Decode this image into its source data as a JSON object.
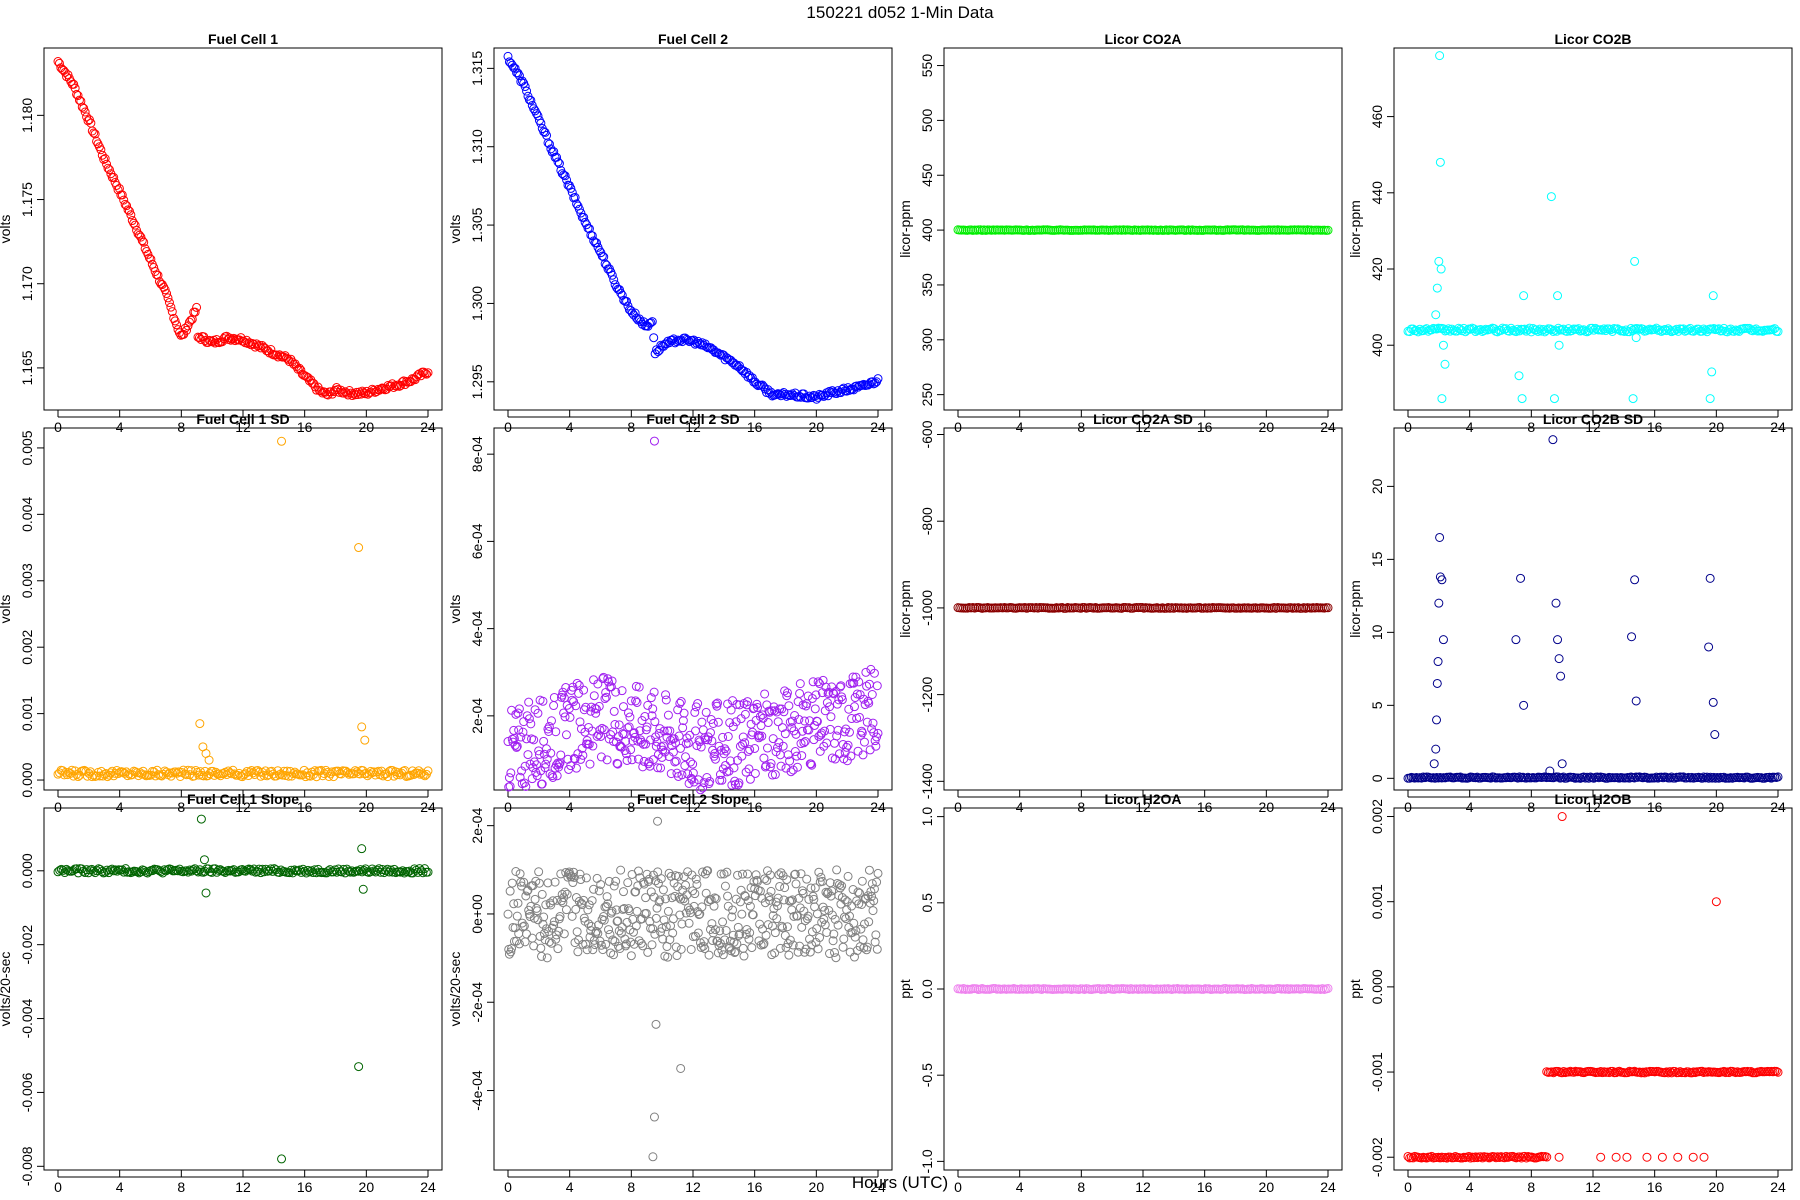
{
  "figure": {
    "title": "150221    d052    1-Min Data",
    "xlabel": "Hours (UTC)"
  },
  "chart_data": [
    {
      "id": "fc1",
      "type": "scatter",
      "title": "Fuel Cell 1",
      "ylabel": "volts",
      "color": "#ff0000",
      "xlim": [
        0,
        24
      ],
      "ylim": [
        1.1625,
        1.184
      ],
      "xticks": [
        "0",
        "4",
        "8",
        "12",
        "16",
        "20",
        "24"
      ],
      "yticks": [
        1.165,
        1.17,
        1.175,
        1.18
      ],
      "yticklabels": [
        "1.165",
        "1.170",
        "1.175",
        "1.180"
      ],
      "series": [
        {
          "x": [
            0,
            1,
            2,
            3,
            4,
            5,
            6,
            7,
            8,
            9,
            9.05,
            9.3,
            10,
            11,
            12,
            13,
            14,
            15,
            16,
            17,
            17.5,
            18,
            19,
            20,
            21,
            22,
            23,
            24
          ],
          "y": [
            1.1832,
            1.1818,
            1.1797,
            1.1774,
            1.1755,
            1.1735,
            1.1714,
            1.1694,
            1.1668,
            1.1685,
            1.1668,
            1.1668,
            1.1665,
            1.1668,
            1.1667,
            1.1663,
            1.1659,
            1.1655,
            1.1645,
            1.1636,
            1.1634,
            1.1637,
            1.1635,
            1.1635,
            1.1638,
            1.164,
            1.1643,
            1.1648
          ]
        }
      ]
    },
    {
      "id": "fc2",
      "type": "scatter",
      "title": "Fuel Cell 2",
      "ylabel": "volts",
      "color": "#0000ff",
      "xlim": [
        0,
        24
      ],
      "ylim": [
        1.2932,
        1.3163
      ],
      "xticks": [
        "0",
        "4",
        "8",
        "12",
        "16",
        "20",
        "24"
      ],
      "yticks": [
        1.295,
        1.3,
        1.305,
        1.31,
        1.315
      ],
      "yticklabels": [
        "1.295",
        "1.300",
        "1.305",
        "1.310",
        "1.315"
      ],
      "series": [
        {
          "x": [
            0,
            1,
            2,
            3,
            4,
            5,
            6,
            7,
            8,
            9,
            9.4,
            9.5,
            10,
            11,
            12,
            13,
            14,
            15,
            16,
            17,
            17.5,
            18,
            19,
            20,
            21,
            22,
            23,
            24
          ],
          "y": [
            1.3157,
            1.314,
            1.3117,
            1.3095,
            1.3074,
            1.3052,
            1.3033,
            1.3012,
            1.2995,
            1.2985,
            1.299,
            1.2968,
            1.2973,
            1.2977,
            1.2976,
            1.2972,
            1.2966,
            1.296,
            1.295,
            1.2943,
            1.2941,
            1.2942,
            1.2941,
            1.294,
            1.2943,
            1.2945,
            1.2947,
            1.2951
          ]
        }
      ]
    },
    {
      "id": "co2a",
      "type": "scatter",
      "title": "Licor CO2A",
      "ylabel": "licor-ppm",
      "color": "#00ee00",
      "xlim": [
        0,
        24
      ],
      "ylim": [
        236,
        566
      ],
      "xticks": [
        "0",
        "4",
        "8",
        "12",
        "16",
        "20",
        "24"
      ],
      "yticks": [
        250,
        300,
        350,
        400,
        450,
        500,
        550
      ],
      "yticklabels": [
        "250",
        "300",
        "350",
        "400",
        "450",
        "500",
        "550"
      ],
      "series": [
        {
          "x": [
            0,
            24
          ],
          "y": [
            400,
            400
          ]
        }
      ]
    },
    {
      "id": "co2b",
      "type": "scatter",
      "title": "Licor CO2B",
      "ylabel": "licor-ppm",
      "color": "#00ffff",
      "xlim": [
        0,
        24
      ],
      "ylim": [
        383,
        478
      ],
      "xticks": [
        "0",
        "4",
        "8",
        "12",
        "16",
        "20",
        "24"
      ],
      "yticks": [
        400,
        420,
        440,
        460
      ],
      "yticklabels": [
        "400",
        "420",
        "440",
        "460"
      ],
      "series": [
        {
          "x": [
            0,
            24
          ],
          "y": [
            404,
            404
          ]
        }
      ],
      "outliers": {
        "x": [
          1.8,
          1.9,
          2,
          2.05,
          2.1,
          2.15,
          2.2,
          2.3,
          2.4,
          7.2,
          7.4,
          7.5,
          9.3,
          9.5,
          9.7,
          9.8,
          14.6,
          14.7,
          14.8,
          19.6,
          19.7,
          19.8
        ],
        "y": [
          408,
          415,
          422,
          476,
          448,
          420,
          386,
          400,
          395,
          392,
          386,
          413,
          439,
          386,
          413,
          400,
          386,
          422,
          402,
          386,
          393,
          413
        ]
      }
    },
    {
      "id": "fc1sd",
      "type": "scatter",
      "title": "Fuel Cell 1 SD",
      "ylabel": "volts",
      "color": "#ffa500",
      "xlim": [
        0,
        24
      ],
      "ylim": [
        -0.00015,
        0.0053
      ],
      "xticks": [
        "0",
        "4",
        "8",
        "12",
        "16",
        "20",
        "24"
      ],
      "yticks": [
        0,
        0.001,
        0.002,
        0.003,
        0.004,
        0.005
      ],
      "yticklabels": [
        "0.000",
        "0.001",
        "0.002",
        "0.003",
        "0.004",
        "0.005"
      ],
      "series": [
        {
          "x": [
            0,
            24
          ],
          "y": [
            0.0001,
            0.0001
          ]
        }
      ],
      "outliers": {
        "x": [
          9.2,
          9.4,
          9.6,
          9.8,
          14.5,
          19.5,
          19.7,
          19.9
        ],
        "y": [
          0.00085,
          0.0005,
          0.0004,
          0.0003,
          0.0051,
          0.0035,
          0.0008,
          0.0006
        ]
      }
    },
    {
      "id": "fc2sd",
      "type": "scatter",
      "title": "Fuel Cell 2 SD",
      "ylabel": "volts",
      "color": "#a020f0",
      "xlim": [
        0,
        24
      ],
      "ylim": [
        3e-05,
        0.00086
      ],
      "xticks": [
        "0",
        "4",
        "8",
        "12",
        "16",
        "20",
        "24"
      ],
      "yticks": [
        0.0002,
        0.0004,
        0.0006,
        0.0008
      ],
      "yticklabels": [
        "2e-04",
        "4e-04",
        "6e-04",
        "8e-04"
      ],
      "series": [
        {
          "x": [
            0,
            2,
            4,
            6,
            8,
            10,
            12,
            14,
            16,
            18,
            20,
            22,
            24
          ],
          "y": [
            0.00012,
            0.00014,
            0.00017,
            0.00019,
            0.00018,
            0.00016,
            0.00013,
            0.00013,
            0.00015,
            0.00017,
            0.00018,
            0.00019,
            0.00022
          ]
        }
      ],
      "outliers": {
        "x": [
          9.5
        ],
        "y": [
          0.00083
        ]
      }
    },
    {
      "id": "co2asd",
      "type": "scatter",
      "title": "Licor CO2A SD",
      "ylabel": "licor-ppm",
      "color": "#8b0000",
      "xlim": [
        0,
        24
      ],
      "ylim": [
        -1420,
        -585
      ],
      "xticks": [
        "0",
        "4",
        "8",
        "12",
        "16",
        "20",
        "24"
      ],
      "yticks": [
        -1400,
        -1200,
        -1000,
        -800,
        -600
      ],
      "yticklabels": [
        "-1400",
        "-1200",
        "-1000",
        "-800",
        "-600"
      ],
      "series": [
        {
          "x": [
            0,
            24
          ],
          "y": [
            -1000,
            -1000
          ]
        }
      ]
    },
    {
      "id": "co2bsd",
      "type": "scatter",
      "title": "Licor CO2B SD",
      "ylabel": "licor-ppm",
      "color": "#00008b",
      "xlim": [
        0,
        24
      ],
      "ylim": [
        -0.8,
        24
      ],
      "xticks": [
        "0",
        "4",
        "8",
        "12",
        "16",
        "20",
        "24"
      ],
      "yticks": [
        0,
        5,
        10,
        15,
        20
      ],
      "yticklabels": [
        "0",
        "5",
        "10",
        "15",
        "20"
      ],
      "series": [
        {
          "x": [
            0,
            24
          ],
          "y": [
            0.05,
            0.05
          ]
        }
      ],
      "outliers": {
        "x": [
          1.7,
          1.8,
          1.85,
          1.9,
          1.95,
          2,
          2.05,
          2.1,
          2.2,
          2.3,
          7,
          7.3,
          7.5,
          9.2,
          9.4,
          9.6,
          9.7,
          9.8,
          9.9,
          10,
          14.5,
          14.7,
          14.8,
          19.5,
          19.6,
          19.8,
          19.9
        ],
        "y": [
          1,
          2,
          4,
          6.5,
          8,
          12,
          16.5,
          13.8,
          13.6,
          9.5,
          9.5,
          13.7,
          5,
          0.5,
          23.2,
          12,
          9.5,
          8.2,
          7,
          1,
          9.7,
          13.6,
          5.3,
          9,
          13.7,
          5.2,
          3
        ]
      }
    },
    {
      "id": "fc1slope",
      "type": "scatter",
      "title": "Fuel Cell 1 Slope",
      "ylabel": "volts/20-sec",
      "color": "#006400",
      "xlim": [
        0,
        24
      ],
      "ylim": [
        -0.0081,
        0.0017
      ],
      "xticks": [
        "0",
        "4",
        "8",
        "12",
        "16",
        "20",
        "24"
      ],
      "yticks": [
        -0.008,
        -0.006,
        -0.004,
        -0.002,
        0
      ],
      "yticklabels": [
        "-0.008",
        "-0.006",
        "-0.004",
        "-0.002",
        "0.000"
      ],
      "series": [
        {
          "x": [
            0,
            24
          ],
          "y": [
            0,
            0
          ]
        }
      ],
      "outliers": {
        "x": [
          9.3,
          9.5,
          9.6,
          14.5,
          19.5,
          19.7,
          19.8
        ],
        "y": [
          0.0014,
          0.0003,
          -0.0006,
          -0.0078,
          -0.0053,
          0.0006,
          -0.0005
        ]
      }
    },
    {
      "id": "fc2slope",
      "type": "scatter",
      "title": "Fuel Cell 2 Slope",
      "ylabel": "volts/20-sec",
      "color": "#808080",
      "xlim": [
        0,
        24
      ],
      "ylim": [
        -0.00058,
        0.00024
      ],
      "xticks": [
        "0",
        "4",
        "8",
        "12",
        "16",
        "20",
        "24"
      ],
      "yticks": [
        -0.0004,
        -0.0002,
        0,
        0.0002
      ],
      "yticklabels": [
        "-4e-04",
        "-2e-04",
        "0e+00",
        "2e-04"
      ],
      "series": [
        {
          "x": [
            0,
            24
          ],
          "y": [
            0,
            0
          ]
        }
      ],
      "outliers": {
        "x": [
          9.4,
          9.5,
          9.6,
          11.2,
          9.7
        ],
        "y": [
          -0.00055,
          -0.00046,
          -0.00025,
          -0.00035,
          0.00021
        ]
      }
    },
    {
      "id": "h2oa",
      "type": "scatter",
      "title": "Licor H2OA",
      "ylabel": "ppt",
      "color": "#ee82ee",
      "xlim": [
        0,
        24
      ],
      "ylim": [
        -1.05,
        1.05
      ],
      "xticks": [
        "0",
        "4",
        "8",
        "12",
        "16",
        "20",
        "24"
      ],
      "yticks": [
        -1,
        -0.5,
        0,
        0.5,
        1
      ],
      "yticklabels": [
        "-1.0",
        "-0.5",
        "0.0",
        "0.5",
        "1.0"
      ],
      "series": [
        {
          "x": [
            0,
            24
          ],
          "y": [
            0,
            0
          ]
        }
      ]
    },
    {
      "id": "h2ob",
      "type": "scatter",
      "title": "Licor H2OB",
      "ylabel": "ppt",
      "color": "#ff0000",
      "xlim": [
        0,
        24
      ],
      "ylim": [
        -0.00215,
        0.0021
      ],
      "xticks": [
        "0",
        "4",
        "8",
        "12",
        "16",
        "20",
        "24"
      ],
      "yticks": [
        -0.002,
        -0.001,
        0,
        0.001,
        0.002
      ],
      "yticklabels": [
        "-0.002",
        "-0.001",
        "0.000",
        "0.001",
        "0.002"
      ],
      "series": [
        {
          "name": "",
          "x": [
            0,
            9
          ],
          "y": [
            -0.002,
            -0.002
          ]
        },
        {
          "x": [
            9,
            24
          ],
          "y": [
            -0.001,
            -0.001
          ]
        }
      ],
      "outliers": {
        "x": [
          10,
          20,
          19.2,
          9.8,
          12.5,
          13.5,
          14.2,
          15.5,
          16.5,
          17.5,
          18.5
        ],
        "y": [
          0.002,
          0.001,
          -0.002,
          -0.002,
          -0.002,
          -0.002,
          -0.002,
          -0.002,
          -0.002,
          -0.002,
          -0.002
        ]
      }
    }
  ]
}
